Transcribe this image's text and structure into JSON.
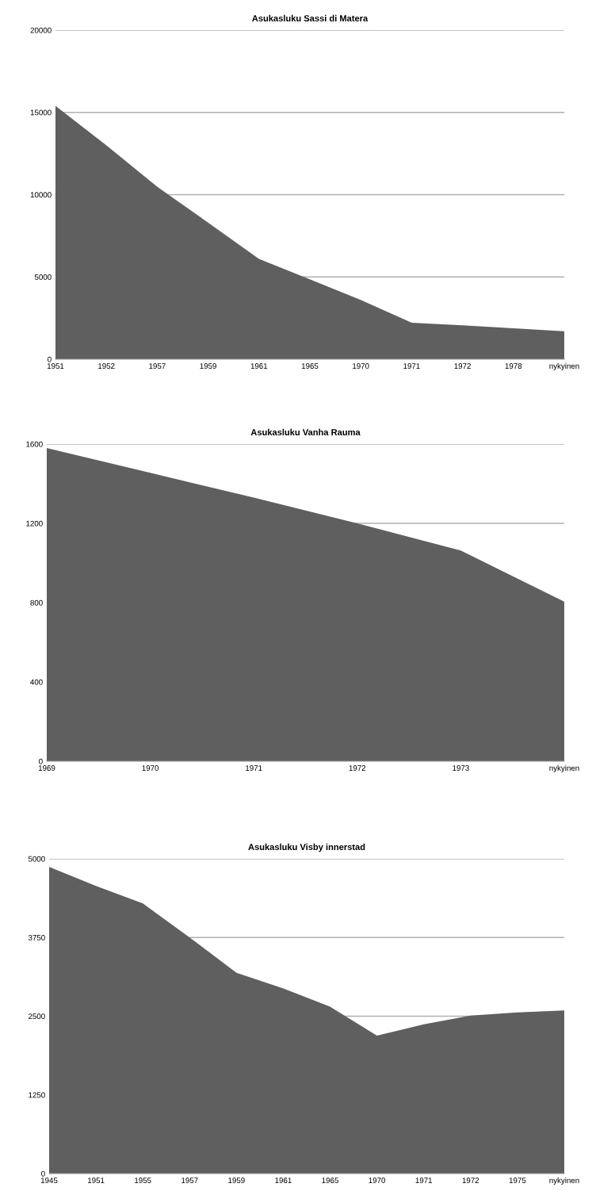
{
  "chart_data": [
    {
      "type": "area",
      "title": "Asukasluku Sassi di Matera",
      "categories": [
        "1951",
        "1952",
        "1957",
        "1959",
        "1961",
        "1965",
        "1970",
        "1971",
        "1972",
        "1978",
        "nykyinen"
      ],
      "series": [
        {
          "color": "#5f5f5f",
          "values": [
            15400,
            13000,
            10480,
            8300,
            6100,
            4860,
            3600,
            2220,
            2060,
            1880,
            1700
          ]
        }
      ],
      "ylim": [
        0,
        20000
      ],
      "yticks": [
        0,
        5000,
        10000,
        15000,
        20000
      ],
      "grid": "y",
      "legend": false
    },
    {
      "type": "area",
      "title": "Asukasluku Vanha Rauma",
      "categories": [
        "1969",
        "1970",
        "1971",
        "1972",
        "1973",
        "nykyinen"
      ],
      "series": [
        {
          "color": "#5f5f5f",
          "values": [
            1580,
            1455,
            1330,
            1200,
            1063,
            805
          ]
        }
      ],
      "ylim": [
        0,
        1600
      ],
      "yticks": [
        0,
        400,
        800,
        1200,
        1600
      ],
      "grid": "y",
      "legend": false
    },
    {
      "type": "area",
      "title": "Asukasluku Visby innerstad",
      "categories": [
        "1945",
        "1951",
        "1955",
        "1957",
        "1959",
        "1961",
        "1965",
        "1970",
        "1971",
        "1972",
        "1975",
        "nykyinen"
      ],
      "series": [
        {
          "color": "#5f5f5f",
          "values": [
            4870,
            4570,
            4290,
            3750,
            3190,
            2940,
            2650,
            2190,
            2370,
            2510,
            2560,
            2590
          ]
        }
      ],
      "ylim": [
        0,
        5000
      ],
      "yticks": [
        0,
        1250,
        2500,
        3750,
        5000
      ],
      "grid": "y",
      "legend": false
    }
  ]
}
